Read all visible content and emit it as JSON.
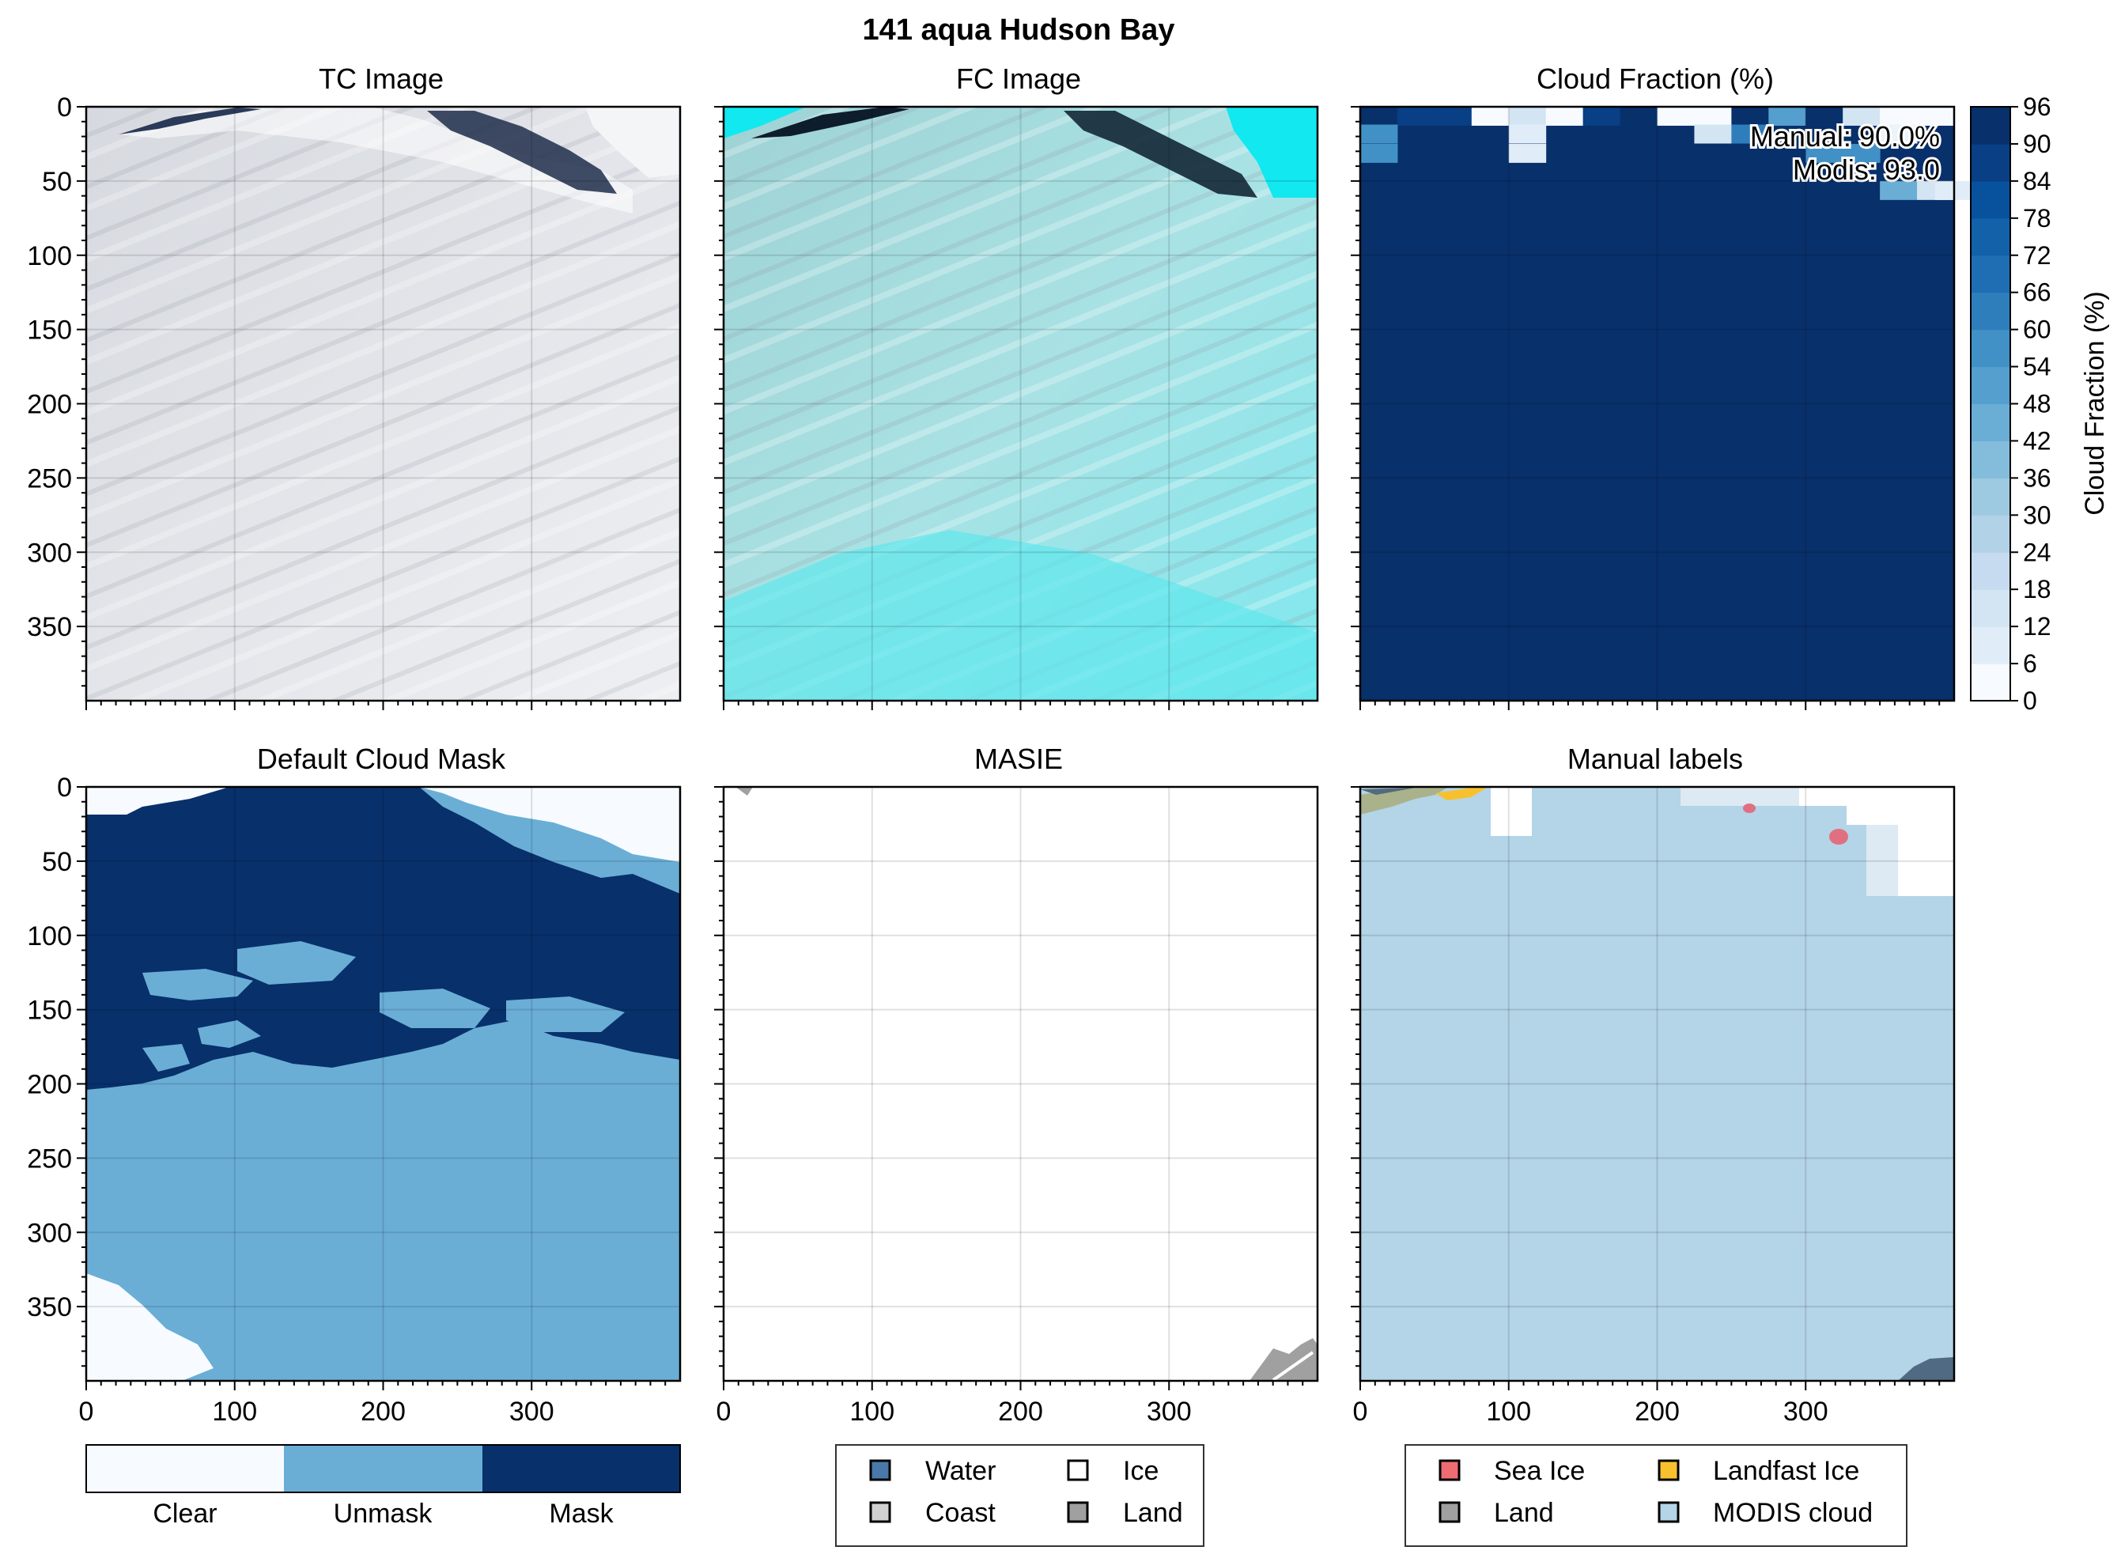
{
  "suptitle": "141 aqua Hudson Bay",
  "colors": {
    "cloud_dark": "#08306b",
    "unmask": "#6aaed6",
    "clear": "#f7fbff",
    "modis_cloud": "#b4d4e8",
    "sea_ice": "#f06c73",
    "landfast_ice": "#f7c12e",
    "land": "#a0a0a0",
    "water": "#4a78a8",
    "coast": "#d0d0d0",
    "fc_cyan": "#11e8f0",
    "tc_gray": "#e4e6ea"
  },
  "chart_data": [
    {
      "id": "tc",
      "type": "heatmap",
      "title": "TC Image",
      "xlim": [
        0,
        400
      ],
      "ylim": [
        400,
        0
      ],
      "xticks": [
        100,
        200,
        300
      ],
      "yticks": [
        0,
        50,
        100,
        150,
        200,
        250,
        300,
        350
      ],
      "ytick_labels": [
        "0",
        "50",
        "100",
        "150",
        "200",
        "250",
        "300",
        "350"
      ],
      "show_xticklabels": false
    },
    {
      "id": "fc",
      "type": "heatmap",
      "title": "FC Image",
      "xlim": [
        0,
        400
      ],
      "ylim": [
        400,
        0
      ],
      "xticks": [
        100,
        200,
        300
      ],
      "yticks": [
        0,
        50,
        100,
        150,
        200,
        250,
        300,
        350
      ],
      "show_xticklabels": false
    },
    {
      "id": "cloudfrac",
      "type": "heatmap",
      "title": "Cloud Fraction (%)",
      "xlim": [
        0,
        400
      ],
      "ylim": [
        400,
        0
      ],
      "grid_cell": 25,
      "cells": [
        {
          "x": 0,
          "y": 0,
          "v": 96
        },
        {
          "x": 25,
          "y": 0,
          "v": 92
        },
        {
          "x": 50,
          "y": 0,
          "v": 92
        },
        {
          "x": 75,
          "y": 0,
          "v": 0
        },
        {
          "x": 100,
          "y": 0,
          "v": 18
        },
        {
          "x": 125,
          "y": 0,
          "v": 0
        },
        {
          "x": 150,
          "y": 0,
          "v": 88
        },
        {
          "x": 175,
          "y": 0,
          "v": 96
        },
        {
          "x": 200,
          "y": 0,
          "v": 0
        },
        {
          "x": 225,
          "y": 0,
          "v": 0
        },
        {
          "x": 250,
          "y": 0,
          "v": 96
        },
        {
          "x": 275,
          "y": 0,
          "v": 54
        },
        {
          "x": 300,
          "y": 0,
          "v": 96
        },
        {
          "x": 325,
          "y": 0,
          "v": 18
        },
        {
          "x": 350,
          "y": 0,
          "v": 0
        },
        {
          "x": 375,
          "y": 0,
          "v": 0
        },
        {
          "x": 0,
          "y": 12,
          "v": 60
        },
        {
          "x": 100,
          "y": 12,
          "v": 12
        },
        {
          "x": 225,
          "y": 12,
          "v": 18
        },
        {
          "x": 250,
          "y": 12,
          "v": 66
        },
        {
          "x": 350,
          "y": 12,
          "v": 6
        },
        {
          "x": 0,
          "y": 25,
          "v": 60
        },
        {
          "x": 100,
          "y": 25,
          "v": 12
        },
        {
          "x": 300,
          "y": 25,
          "v": 60
        },
        {
          "x": 325,
          "y": 25,
          "v": 60
        },
        {
          "x": 350,
          "y": 50,
          "v": 48
        },
        {
          "x": 375,
          "y": 50,
          "v": 18
        },
        {
          "x": 387,
          "y": 50,
          "v": 12
        }
      ],
      "colorbar": {
        "label": "Cloud Fraction (%)",
        "ticks": [
          "96",
          "90",
          "84",
          "78",
          "72",
          "66",
          "60",
          "54",
          "48",
          "42",
          "36",
          "30",
          "24",
          "18",
          "12",
          "6",
          "0"
        ],
        "min": 0,
        "max": 96,
        "step": 6
      },
      "annotations": [
        "Manual: 90.0%",
        "Modis: 93.0"
      ],
      "xticks": [
        100,
        200,
        300
      ],
      "yticks": [
        0,
        50,
        100,
        150,
        200,
        250,
        300,
        350
      ],
      "show_xticklabels": false
    },
    {
      "id": "cloudmask",
      "type": "heatmap",
      "title": "Default Cloud Mask",
      "xlim": [
        0,
        400
      ],
      "ylim": [
        400,
        0
      ],
      "xticks": [
        0,
        100,
        200,
        300
      ],
      "xtick_labels": [
        "0",
        "100",
        "200",
        "300"
      ],
      "yticks": [
        0,
        50,
        100,
        150,
        200,
        250,
        300,
        350
      ],
      "ytick_labels": [
        "0",
        "50",
        "100",
        "150",
        "200",
        "250",
        "300",
        "350"
      ],
      "legend_bar": [
        "Clear",
        "Unmask",
        "Mask"
      ]
    },
    {
      "id": "masie",
      "type": "heatmap",
      "title": "MASIE",
      "xlim": [
        0,
        400
      ],
      "ylim": [
        400,
        0
      ],
      "xticks": [
        0,
        100,
        200,
        300
      ],
      "xtick_labels": [
        "0",
        "100",
        "200",
        "300"
      ],
      "yticks": [
        0,
        50,
        100,
        150,
        200,
        250,
        300,
        350
      ],
      "legend": [
        {
          "label": "Water",
          "color": "#4a78a8"
        },
        {
          "label": "Ice",
          "color": "#ffffff"
        },
        {
          "label": "Coast",
          "color": "#d0d0d0"
        },
        {
          "label": "Land",
          "color": "#a0a0a0"
        }
      ]
    },
    {
      "id": "manual",
      "type": "heatmap",
      "title": "Manual labels",
      "xlim": [
        0,
        400
      ],
      "ylim": [
        400,
        0
      ],
      "xticks": [
        0,
        100,
        200,
        300
      ],
      "xtick_labels": [
        "0",
        "100",
        "200",
        "300"
      ],
      "yticks": [
        0,
        50,
        100,
        150,
        200,
        250,
        300,
        350
      ],
      "legend": [
        {
          "label": "Sea Ice",
          "color": "#f06c73"
        },
        {
          "label": "Landfast Ice",
          "color": "#f7c12e"
        },
        {
          "label": "Land",
          "color": "#a0a0a0"
        },
        {
          "label": "MODIS cloud",
          "color": "#b4d4e8"
        }
      ]
    }
  ]
}
